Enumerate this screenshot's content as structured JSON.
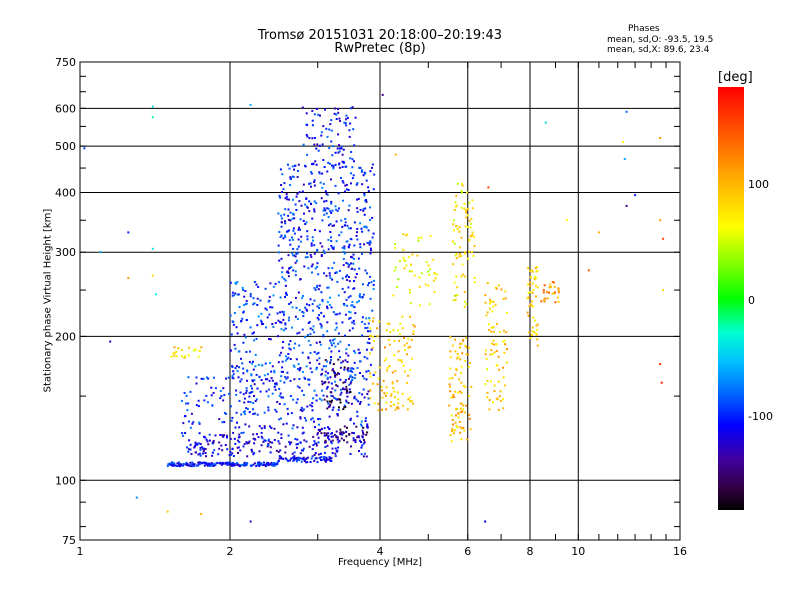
{
  "header": {
    "title_line1": "Tromsø 20151031 20:18:00–20:19:43",
    "title_line2": "RwPretec (8p)"
  },
  "phase_box": {
    "heading": "Phases",
    "line_o": "mean, sd,O: -93.5, 19.5",
    "line_x": "mean, sd,X:  89.6, 23.4"
  },
  "colorbar": {
    "unit": "[deg]",
    "ticks": [
      "100",
      "0",
      "-100"
    ],
    "tick_values": [
      100,
      0,
      -100
    ],
    "range": [
      -180,
      180
    ]
  },
  "chart_data": {
    "type": "scatter",
    "xlabel": "Frequency [MHz]",
    "ylabel": "Stationary phase Virtual Height [km]",
    "x_scale": "log",
    "y_scale": "log",
    "xlim": [
      1,
      16
    ],
    "ylim": [
      75,
      750
    ],
    "x_ticks": [
      1,
      2,
      4,
      6,
      8,
      10,
      16
    ],
    "x_tick_labels": [
      "1",
      "2",
      "4",
      "6",
      "8",
      "10",
      "16"
    ],
    "x_grid": [
      2,
      4,
      6,
      8,
      10
    ],
    "y_ticks": [
      75,
      100,
      200,
      300,
      400,
      500,
      600,
      750
    ],
    "y_tick_labels": [
      "75",
      "100",
      "200",
      "300",
      "400",
      "500",
      "600",
      "750"
    ],
    "y_grid": [
      100,
      200,
      300,
      400,
      500,
      600
    ],
    "grid": true,
    "color_by": "phase [deg]",
    "traces": [
      {
        "x_range": [
          1.5,
          2.5
        ],
        "y_range": [
          107,
          109
        ],
        "phase": -105,
        "density": 200
      },
      {
        "x_range": [
          2.5,
          3.2
        ],
        "y_range": [
          109,
          112
        ],
        "phase": -110,
        "density": 70
      },
      {
        "x_range": [
          1.6,
          3.8
        ],
        "y_range": [
          112,
          126
        ],
        "phase": -115,
        "density": 220
      },
      {
        "x_range": [
          3.0,
          3.9
        ],
        "y_range": [
          120,
          130
        ],
        "phase": -140,
        "density": 50
      },
      {
        "x_range": [
          1.6,
          3.8
        ],
        "y_range": [
          128,
          165
        ],
        "phase": -100,
        "density": 260
      },
      {
        "x_range": [
          2.0,
          3.9
        ],
        "y_range": [
          160,
          260
        ],
        "phase": -95,
        "density": 420
      },
      {
        "x_range": [
          2.5,
          3.9
        ],
        "y_range": [
          260,
          460
        ],
        "phase": -100,
        "density": 380
      },
      {
        "x_range": [
          2.8,
          3.6
        ],
        "y_range": [
          450,
          610
        ],
        "phase": -105,
        "density": 90
      },
      {
        "x_range": [
          3.0,
          3.5
        ],
        "y_range": [
          140,
          180
        ],
        "phase": -150,
        "density": 60
      },
      {
        "x_range": [
          1.5,
          1.8
        ],
        "y_range": [
          180,
          190
        ],
        "phase": 80,
        "density": 20
      },
      {
        "x_range": [
          3.8,
          4.7
        ],
        "y_range": [
          140,
          220
        ],
        "phase": 90,
        "density": 110
      },
      {
        "x_range": [
          4.2,
          5.2
        ],
        "y_range": [
          230,
          330
        ],
        "phase": 60,
        "density": 50
      },
      {
        "x_range": [
          5.5,
          6.1
        ],
        "y_range": [
          120,
          200
        ],
        "phase": 95,
        "density": 90
      },
      {
        "x_range": [
          5.6,
          6.2
        ],
        "y_range": [
          230,
          420
        ],
        "phase": 70,
        "density": 80
      },
      {
        "x_range": [
          6.5,
          7.2
        ],
        "y_range": [
          140,
          260
        ],
        "phase": 85,
        "density": 80
      },
      {
        "x_range": [
          7.9,
          8.3
        ],
        "y_range": [
          190,
          280
        ],
        "phase": 85,
        "density": 50
      },
      {
        "x_range": [
          8.4,
          9.2
        ],
        "y_range": [
          235,
          260
        ],
        "phase": 110,
        "density": 25
      }
    ],
    "scattered": [
      {
        "x": 1.02,
        "y": 495,
        "phase": -90
      },
      {
        "x": 1.1,
        "y": 300,
        "phase": -60
      },
      {
        "x": 1.15,
        "y": 195,
        "phase": -120
      },
      {
        "x": 1.25,
        "y": 330,
        "phase": -100
      },
      {
        "x": 1.25,
        "y": 265,
        "phase": 110
      },
      {
        "x": 1.4,
        "y": 605,
        "phase": -40
      },
      {
        "x": 1.4,
        "y": 575,
        "phase": -20
      },
      {
        "x": 1.4,
        "y": 305,
        "phase": -40
      },
      {
        "x": 1.4,
        "y": 268,
        "phase": 80
      },
      {
        "x": 1.42,
        "y": 245,
        "phase": -30
      },
      {
        "x": 1.3,
        "y": 92,
        "phase": -70
      },
      {
        "x": 1.5,
        "y": 86,
        "phase": 90
      },
      {
        "x": 1.75,
        "y": 85,
        "phase": 100
      },
      {
        "x": 2.2,
        "y": 610,
        "phase": -60
      },
      {
        "x": 2.2,
        "y": 82,
        "phase": -130
      },
      {
        "x": 4.05,
        "y": 640,
        "phase": -140
      },
      {
        "x": 4.3,
        "y": 480,
        "phase": 100
      },
      {
        "x": 6.5,
        "y": 82,
        "phase": -110
      },
      {
        "x": 6.6,
        "y": 410,
        "phase": 150
      },
      {
        "x": 8.6,
        "y": 560,
        "phase": -40
      },
      {
        "x": 9.5,
        "y": 350,
        "phase": 60
      },
      {
        "x": 10.5,
        "y": 275,
        "phase": 140
      },
      {
        "x": 11.0,
        "y": 330,
        "phase": 100
      },
      {
        "x": 12.5,
        "y": 590,
        "phase": -80
      },
      {
        "x": 12.3,
        "y": 510,
        "phase": 60
      },
      {
        "x": 12.4,
        "y": 470,
        "phase": -60
      },
      {
        "x": 12.5,
        "y": 375,
        "phase": -140
      },
      {
        "x": 13.0,
        "y": 395,
        "phase": -100
      },
      {
        "x": 14.6,
        "y": 520,
        "phase": 110
      },
      {
        "x": 14.6,
        "y": 350,
        "phase": 110
      },
      {
        "x": 14.8,
        "y": 320,
        "phase": 150
      },
      {
        "x": 14.8,
        "y": 250,
        "phase": 80
      },
      {
        "x": 14.6,
        "y": 175,
        "phase": 160
      },
      {
        "x": 14.7,
        "y": 160,
        "phase": 170
      }
    ]
  }
}
